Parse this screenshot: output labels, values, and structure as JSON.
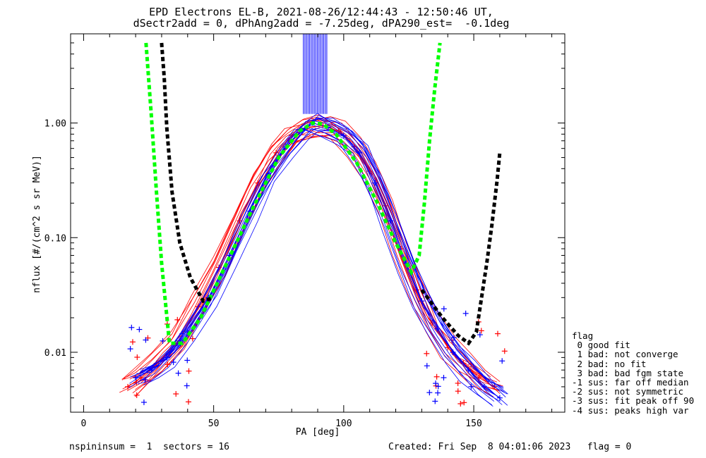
{
  "title": {
    "line1": "EPD Electrons EL-B, 2021-08-26/12:44:43 - 12:50:46 UT,",
    "line2": "dSectr2add = 0, dPhAng2add = -7.25deg, dPA290_est=  -0.1deg"
  },
  "footer": {
    "left": "nspininsum =  1  sectors = 16",
    "right": "Created: Fri Sep  8 04:01:06 2023   flag = 0"
  },
  "legend": {
    "title": "flag",
    "items": [
      " 0 good fit",
      " 1 bad: not converge",
      " 2 bad: no fit",
      " 3 bad: bad fgm state",
      "-1 sus: far off median",
      "-2 sus: not symmetric",
      "-3 sus: fit peak off 90",
      "-4 sus: peaks high var"
    ]
  },
  "colors": {
    "series_a": "#ff0000",
    "series_b": "#0000ff",
    "fit_green": "#00ff00",
    "fit_black": "#000000",
    "axes": "#000000"
  },
  "chart_data": {
    "type": "line",
    "title": "EPD Electrons EL-B, 2021-08-26/12:44:43 - 12:50:46 UT,",
    "subtitle": "dSectr2add = 0, dPhAng2add = -7.25deg, dPA290_est=  -0.1deg",
    "xlabel": "PA [deg]",
    "ylabel": "nflux [#/(cm^2 s sr MeV)]",
    "xlim": [
      -5,
      185
    ],
    "ylim": [
      0.003,
      6.0
    ],
    "yscale": "log",
    "x_ticks": [
      0,
      50,
      100,
      150
    ],
    "x_tick_labels": [
      "0",
      "50",
      "100",
      "150"
    ],
    "y_ticks": [
      0.01,
      0.1,
      1.0
    ],
    "y_tick_labels": [
      "0.01",
      "0.10",
      "1.00"
    ],
    "grid": false,
    "legend_position": "right, outside plot",
    "series": [
      {
        "color": "red",
        "marker": "+",
        "x": [
          17,
          22,
          28,
          36,
          44,
          52,
          60,
          67,
          74,
          80,
          86,
          92,
          98,
          104,
          110,
          116,
          122,
          128,
          134,
          140,
          146,
          152,
          158
        ],
        "y": [
          0.005,
          0.006,
          0.008,
          0.012,
          0.025,
          0.055,
          0.14,
          0.3,
          0.55,
          0.78,
          0.92,
          0.95,
          0.85,
          0.62,
          0.38,
          0.19,
          0.08,
          0.035,
          0.018,
          0.011,
          0.008,
          0.006,
          0.005
        ]
      },
      {
        "color": "blue",
        "marker": "+",
        "x": [
          20,
          26,
          32,
          40,
          48,
          56,
          64,
          71,
          78,
          84,
          88,
          94,
          100,
          106,
          112,
          118,
          124,
          130,
          136,
          142,
          148,
          154,
          160
        ],
        "y": [
          0.006,
          0.007,
          0.009,
          0.015,
          0.03,
          0.07,
          0.17,
          0.36,
          0.62,
          0.86,
          1.0,
          0.92,
          0.78,
          0.55,
          0.3,
          0.14,
          0.06,
          0.028,
          0.016,
          0.01,
          0.007,
          0.005,
          0.004
        ]
      }
    ],
    "fit_curves": [
      {
        "color": "green",
        "style": "dashed",
        "x": [
          24,
          26,
          28,
          30,
          33,
          38,
          45,
          55,
          65,
          75,
          83,
          88,
          92,
          97,
          105,
          113,
          120,
          126,
          129,
          131,
          133,
          135,
          137
        ],
        "y": [
          5.0,
          1.2,
          0.25,
          0.06,
          0.012,
          0.012,
          0.02,
          0.06,
          0.18,
          0.5,
          0.85,
          1.0,
          0.98,
          0.8,
          0.45,
          0.2,
          0.09,
          0.05,
          0.07,
          0.2,
          0.7,
          2.0,
          5.0
        ]
      },
      {
        "color": "black",
        "style": "dashed",
        "x": [
          30,
          31,
          32,
          34,
          37,
          41,
          46,
          50,
          130,
          138,
          144,
          148,
          151,
          153,
          155,
          157,
          159,
          160
        ],
        "y": [
          5.0,
          2.5,
          0.9,
          0.25,
          0.09,
          0.045,
          0.028,
          0.03,
          0.035,
          0.02,
          0.014,
          0.012,
          0.015,
          0.03,
          0.06,
          0.13,
          0.32,
          0.55
        ]
      }
    ],
    "annotations": [
      "band of vertical blue/red lines between PA ~85 and ~94 above 1.2"
    ]
  }
}
